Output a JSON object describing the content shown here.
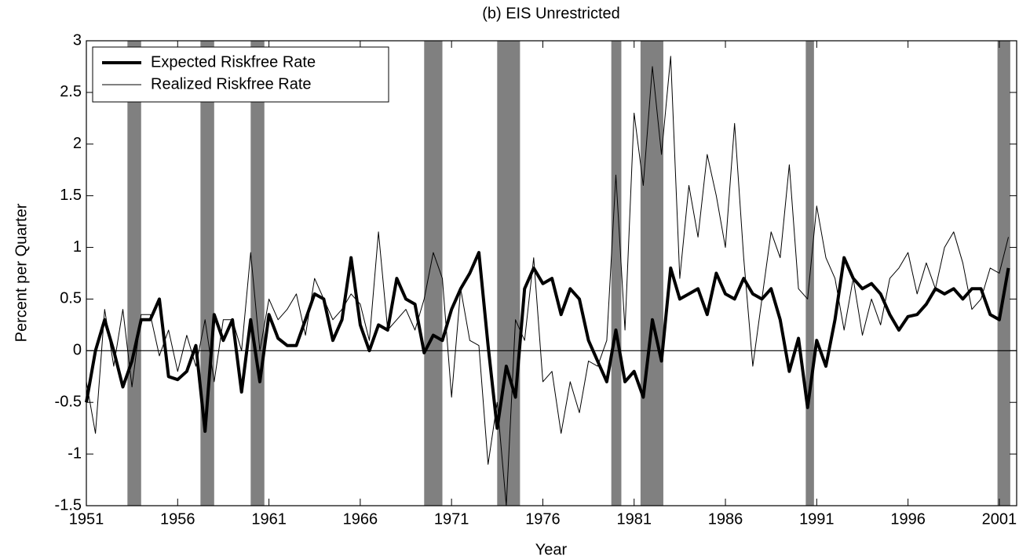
{
  "chart_data": {
    "type": "line",
    "title": "(b) EIS Unrestricted",
    "xlabel": "Year",
    "ylabel": "Percent per Quarter",
    "x": [
      1951,
      1951.5,
      1952,
      1952.5,
      1953,
      1953.5,
      1954,
      1954.5,
      1955,
      1955.5,
      1956,
      1956.5,
      1957,
      1957.5,
      1958,
      1958.5,
      1959,
      1959.5,
      1960,
      1960.5,
      1961,
      1961.5,
      1962,
      1962.5,
      1963,
      1963.5,
      1964,
      1964.5,
      1965,
      1965.5,
      1966,
      1966.5,
      1967,
      1967.5,
      1968,
      1968.5,
      1969,
      1969.5,
      1970,
      1970.5,
      1971,
      1971.5,
      1972,
      1972.5,
      1973,
      1973.5,
      1974,
      1974.5,
      1975,
      1975.5,
      1976,
      1976.5,
      1977,
      1977.5,
      1978,
      1978.5,
      1979,
      1979.5,
      1980,
      1980.5,
      1981,
      1981.5,
      1982,
      1982.5,
      1983,
      1983.5,
      1984,
      1984.5,
      1985,
      1985.5,
      1986,
      1986.5,
      1987,
      1987.5,
      1988,
      1988.5,
      1989,
      1989.5,
      1990,
      1990.5,
      1991,
      1991.5,
      1992,
      1992.5,
      1993,
      1993.5,
      1994,
      1994.5,
      1995,
      1995.5,
      1996,
      1996.5,
      1997,
      1997.5,
      1998,
      1998.5,
      1999,
      1999.5,
      2000,
      2000.5,
      2001,
      2001.5
    ],
    "series": [
      {
        "name": "Expected Riskfree Rate",
        "color": "#000000",
        "width": 4,
        "values": [
          -0.5,
          0.0,
          0.3,
          0.0,
          -0.35,
          -0.1,
          0.3,
          0.3,
          0.5,
          -0.25,
          -0.28,
          -0.2,
          0.05,
          -0.78,
          0.35,
          0.1,
          0.3,
          -0.4,
          0.3,
          -0.3,
          0.35,
          0.12,
          0.05,
          0.05,
          0.3,
          0.55,
          0.5,
          0.1,
          0.3,
          0.9,
          0.25,
          0.0,
          0.25,
          0.2,
          0.7,
          0.5,
          0.45,
          -0.02,
          0.15,
          0.1,
          0.4,
          0.6,
          0.75,
          0.95,
          0.05,
          -0.75,
          -0.15,
          -0.45,
          0.6,
          0.8,
          0.65,
          0.7,
          0.35,
          0.6,
          0.5,
          0.1,
          -0.1,
          -0.3,
          0.2,
          -0.3,
          -0.2,
          -0.45,
          0.3,
          -0.1,
          0.8,
          0.5,
          0.55,
          0.6,
          0.35,
          0.75,
          0.55,
          0.5,
          0.7,
          0.55,
          0.5,
          0.6,
          0.3,
          -0.2,
          0.12,
          -0.55,
          0.1,
          -0.15,
          0.3,
          0.9,
          0.7,
          0.6,
          0.65,
          0.55,
          0.35,
          0.2,
          0.33,
          0.35,
          0.45,
          0.6,
          0.55,
          0.6,
          0.5,
          0.6,
          0.6,
          0.35,
          0.3,
          0.8
        ]
      },
      {
        "name": "Realized Riskfree Rate",
        "color": "#000000",
        "width": 1,
        "values": [
          -0.3,
          -0.8,
          0.4,
          -0.15,
          0.4,
          -0.35,
          0.35,
          0.35,
          -0.05,
          0.2,
          -0.2,
          0.15,
          -0.15,
          0.3,
          -0.3,
          0.3,
          0.3,
          0.0,
          0.95,
          0.0,
          0.5,
          0.3,
          0.4,
          0.55,
          0.15,
          0.7,
          0.5,
          0.3,
          0.4,
          0.55,
          0.45,
          0.1,
          1.15,
          0.2,
          0.3,
          0.4,
          0.2,
          0.5,
          0.95,
          0.7,
          -0.45,
          0.6,
          0.1,
          0.05,
          -1.1,
          -0.5,
          -1.5,
          0.3,
          0.1,
          0.9,
          -0.3,
          -0.2,
          -0.8,
          -0.3,
          -0.6,
          -0.1,
          -0.15,
          0.1,
          1.7,
          0.2,
          2.3,
          1.6,
          2.75,
          1.9,
          2.85,
          0.7,
          1.6,
          1.1,
          1.9,
          1.5,
          1.0,
          2.2,
          0.9,
          -0.15,
          0.5,
          1.15,
          0.9,
          1.8,
          0.6,
          0.5,
          1.4,
          0.9,
          0.7,
          0.2,
          0.7,
          0.15,
          0.5,
          0.25,
          0.7,
          0.8,
          0.95,
          0.55,
          0.85,
          0.6,
          1.0,
          1.15,
          0.85,
          0.4,
          0.5,
          0.8,
          0.75,
          1.1
        ]
      }
    ],
    "shaded_regions": [
      [
        1953.25,
        1954
      ],
      [
        1957.25,
        1958
      ],
      [
        1960,
        1960.75
      ],
      [
        1969.5,
        1970.5
      ],
      [
        1973.5,
        1974.75
      ],
      [
        1979.75,
        1980.3
      ],
      [
        1981.35,
        1982.6
      ],
      [
        1990.4,
        1990.85
      ],
      [
        2000.9,
        2001.6
      ]
    ],
    "shade_color": "#808080",
    "reference_line": 0,
    "xlim": [
      1951,
      2001.95
    ],
    "xticks": [
      1951,
      1956,
      1961,
      1966,
      1971,
      1976,
      1981,
      1986,
      1991,
      1996,
      2001
    ],
    "ylim": [
      -1.5,
      3
    ],
    "yticks": [
      -1.5,
      -1,
      -0.5,
      0,
      0.5,
      1,
      1.5,
      2,
      2.5,
      3
    ],
    "legend": "upper left",
    "grid": false
  }
}
